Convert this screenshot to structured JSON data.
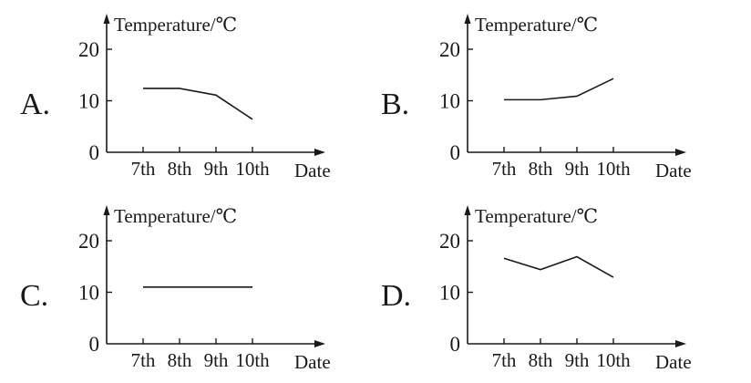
{
  "chart_data": [
    {
      "type": "line",
      "option_label": "A.",
      "ylabel": "Temperature/℃",
      "xlabel": "Date",
      "categories": [
        "7th",
        "8th",
        "9th",
        "10th"
      ],
      "yticks": [
        0,
        10,
        20
      ],
      "ylim": [
        0,
        22
      ],
      "values": [
        12.4,
        12.4,
        11.1,
        6.4
      ]
    },
    {
      "type": "line",
      "option_label": "B.",
      "ylabel": "Temperature/℃",
      "xlabel": "Date",
      "categories": [
        "7th",
        "8th",
        "9th",
        "10th"
      ],
      "yticks": [
        0,
        10,
        20
      ],
      "ylim": [
        0,
        22
      ],
      "values": [
        10.2,
        10.2,
        10.9,
        14.3
      ]
    },
    {
      "type": "line",
      "option_label": "C.",
      "ylabel": "Temperature/℃",
      "xlabel": "Date",
      "categories": [
        "7th",
        "8th",
        "9th",
        "10th"
      ],
      "yticks": [
        0,
        10,
        20
      ],
      "ylim": [
        0,
        22
      ],
      "values": [
        11,
        11,
        11,
        11
      ]
    },
    {
      "type": "line",
      "option_label": "D.",
      "ylabel": "Temperature/℃",
      "xlabel": "Date",
      "categories": [
        "7th",
        "8th",
        "9th",
        "10th"
      ],
      "yticks": [
        0,
        10,
        20
      ],
      "ylim": [
        0,
        22
      ],
      "values": [
        16.6,
        14.4,
        16.9,
        12.9
      ]
    }
  ]
}
